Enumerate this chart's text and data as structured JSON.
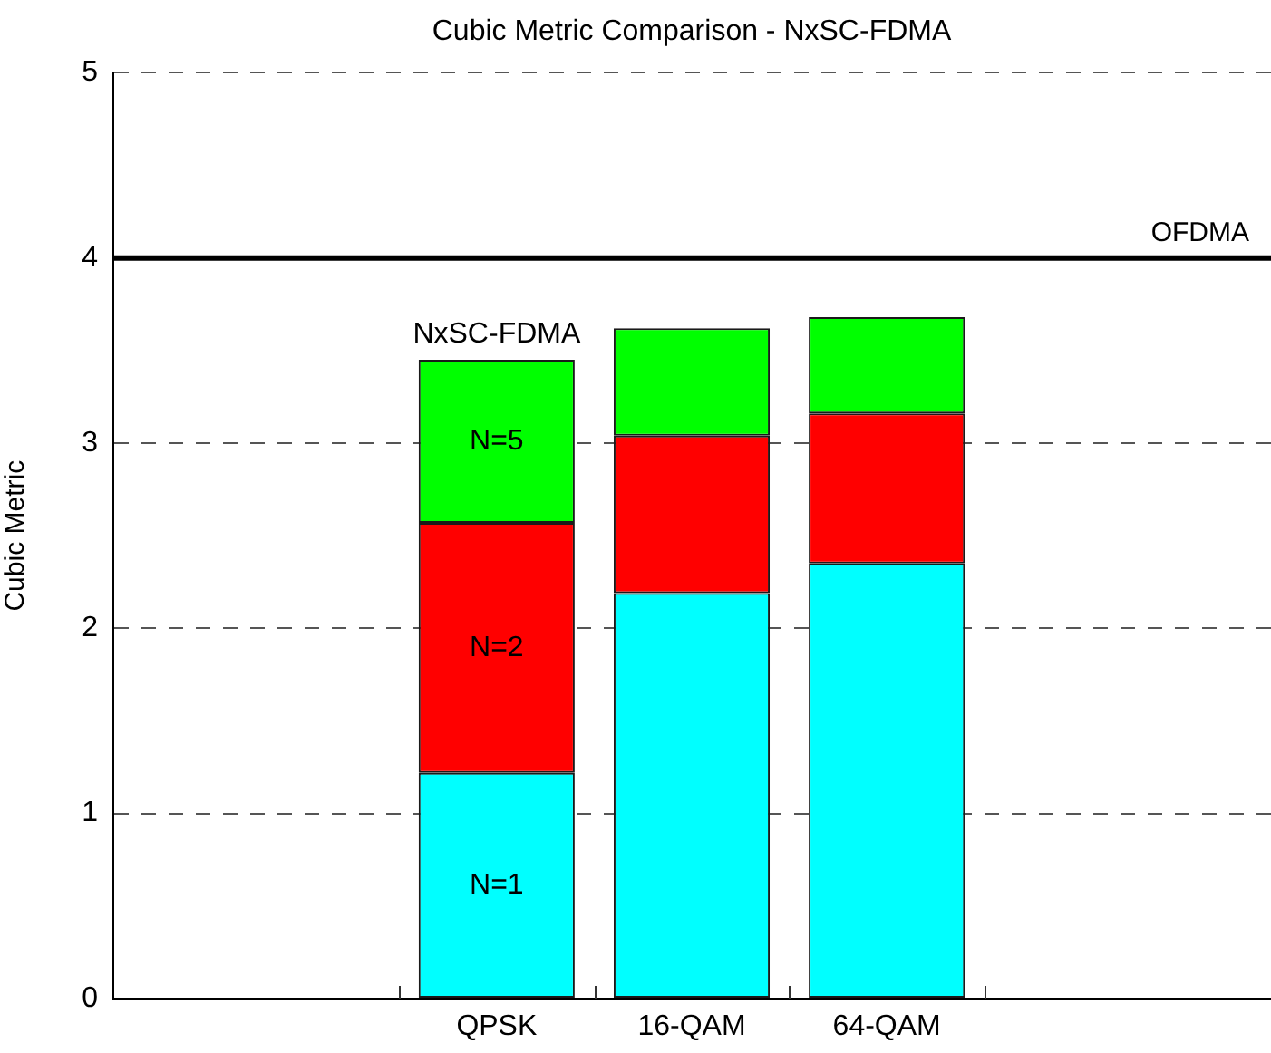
{
  "chart_data": {
    "type": "bar",
    "title": "Cubic Metric Comparison - NxSC-FDMA",
    "ylabel": "Cubic Metric",
    "categories": [
      "QPSK",
      "16-QAM",
      "64-QAM"
    ],
    "series": [
      {
        "name": "N=1",
        "color": "#00ffff",
        "values": [
          1.22,
          2.19,
          2.35
        ]
      },
      {
        "name": "N=2",
        "color": "#ff0000",
        "values": [
          1.35,
          0.85,
          0.81
        ]
      },
      {
        "name": "N=5",
        "color": "#00ff00",
        "values": [
          0.88,
          0.58,
          0.52
        ]
      }
    ],
    "stacked": true,
    "ylim": [
      0,
      5
    ],
    "yticks": [
      0,
      1,
      2,
      3,
      4,
      5
    ],
    "grid": "y",
    "legend": false,
    "ref_lines": [
      {
        "axis": "y",
        "value": 4,
        "label": "OFDMA",
        "color": "#000000"
      }
    ],
    "annotations": [
      "NxSC-FDMA"
    ]
  }
}
